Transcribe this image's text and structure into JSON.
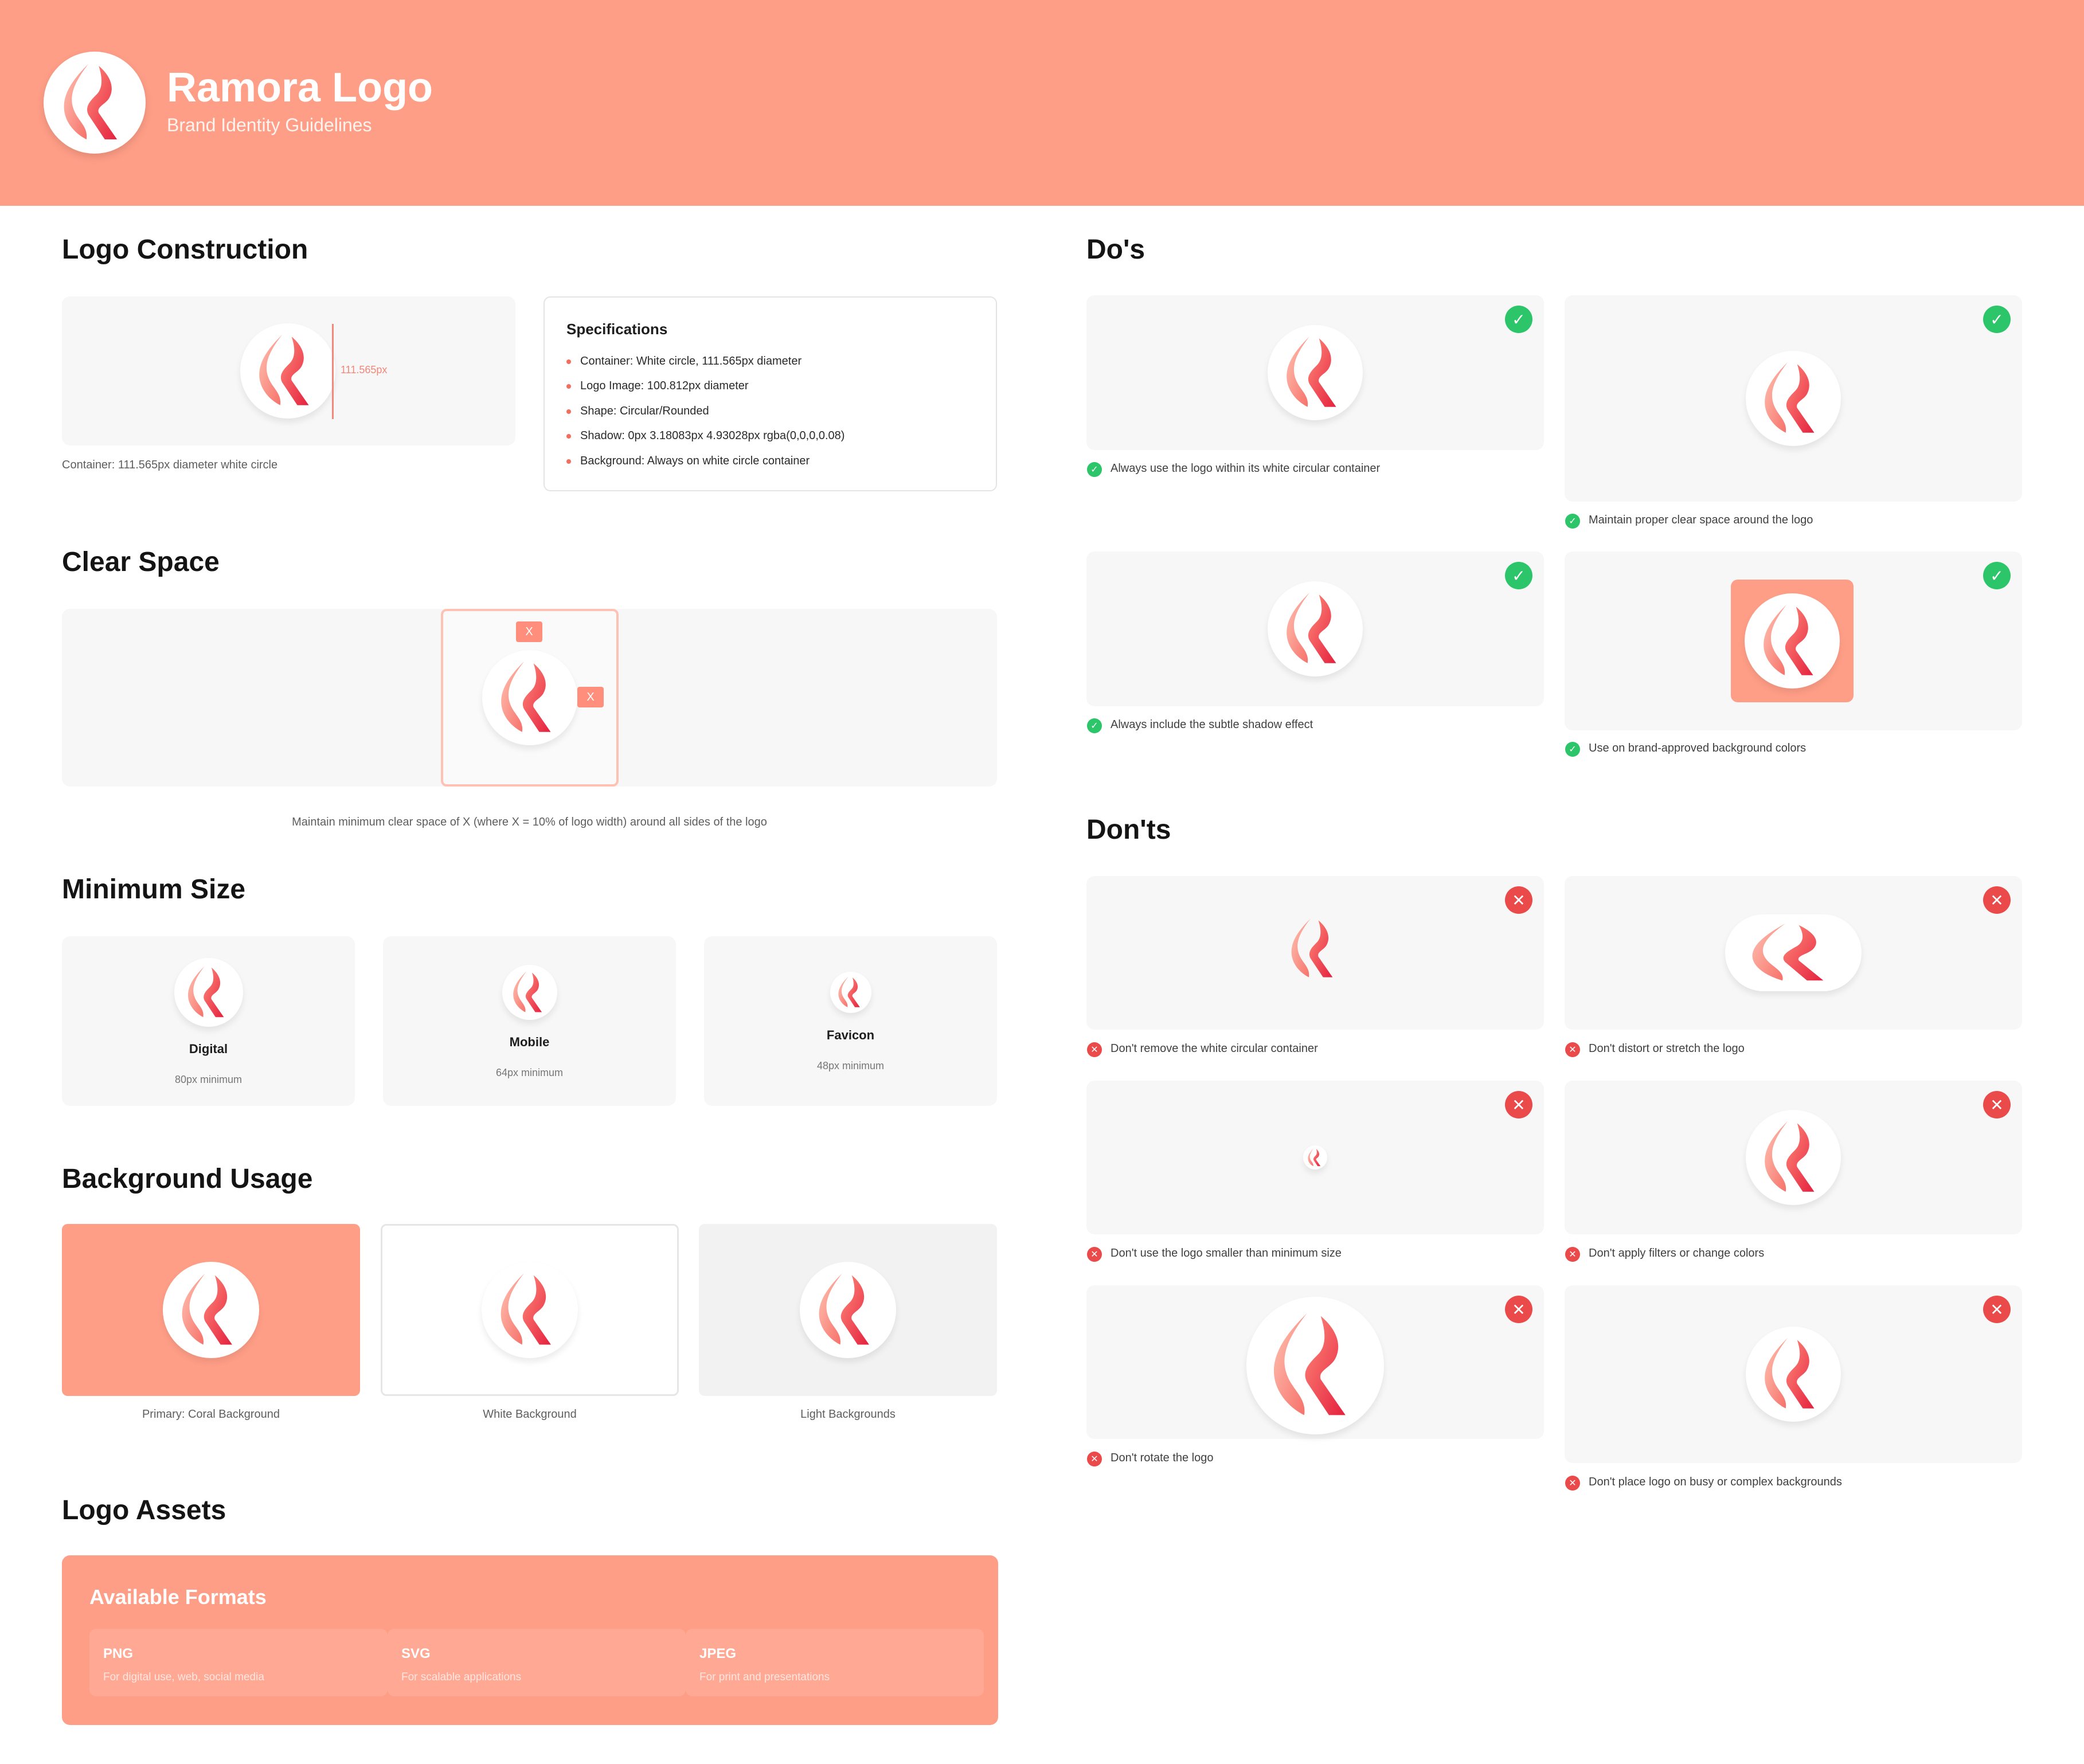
{
  "header": {
    "title": "Ramora Logo",
    "subtitle": "Brand Identity Guidelines"
  },
  "construction": {
    "title": "Logo Construction",
    "dimension_label": "111.565px",
    "caption": "Container: 111.565px diameter white circle",
    "specs_title": "Specifications",
    "specs": [
      "Container:  White circle, 111.565px diameter",
      "Logo Image:  100.812px diameter",
      "Shape: Circular/Rounded",
      "Shadow: 0px 3.18083px 4.93028px rgba(0,0,0,0.08)",
      "Background:  Always on white circle container"
    ]
  },
  "clear_space": {
    "title": "Clear Space",
    "x_label": "X",
    "caption": "Maintain minimum clear space of X (where X = 10% of logo width) around all sides of the logo"
  },
  "min_size": {
    "title": "Minimum Size",
    "items": [
      {
        "name": "Digital",
        "desc": "80px minimum"
      },
      {
        "name": "Mobile",
        "desc": "64px minimum"
      },
      {
        "name": "Favicon",
        "desc": "48px minimum"
      }
    ]
  },
  "background_usage": {
    "title": "Background Usage",
    "items": [
      "Primary: Coral Background",
      "White Background",
      "Light Backgrounds"
    ]
  },
  "assets": {
    "title": "Logo Assets",
    "panel_title": "Available Formats",
    "formats": [
      {
        "name": "PNG",
        "desc": "For digital use, web, social media"
      },
      {
        "name": "SVG",
        "desc": "For scalable applications"
      },
      {
        "name": "JPEG",
        "desc": "For print and presentations"
      }
    ]
  },
  "dos": {
    "title": "Do's",
    "items": [
      "Always use the logo within its white circular container",
      "Maintain proper clear space around the logo",
      "Always include the subtle shadow effect",
      "Use on brand-approved background colors"
    ]
  },
  "donts": {
    "title": "Don'ts",
    "items": [
      "Don't remove the white circular container",
      "Don't distort or stretch the logo",
      "Don't use the logo smaller than minimum size",
      "Don't apply filters or change colors",
      "Don't rotate the logo",
      "Don't place logo on busy or complex backgrounds"
    ]
  },
  "colors": {
    "coral": "#FF9E87",
    "card": "#F7F7F7",
    "ok": "#2DC56A",
    "bad": "#EB4A4A"
  }
}
